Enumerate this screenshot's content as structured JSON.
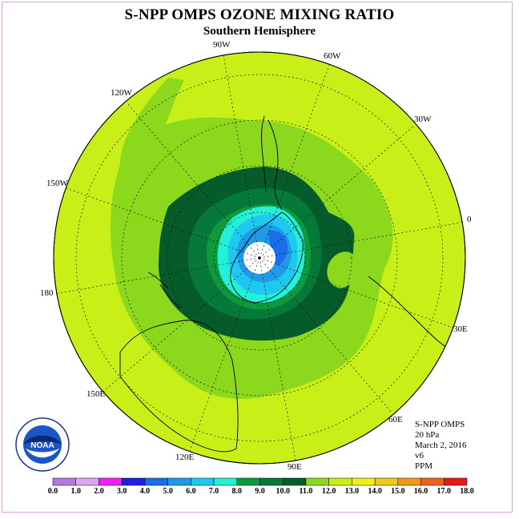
{
  "title": "S-NPP OMPS OZONE MIXING RATIO",
  "subtitle": "Southern Hemisphere",
  "longitude_labels": [
    "90W",
    "60W",
    "30W",
    "0",
    "30E",
    "60E",
    "90E",
    "120E",
    "150E",
    "180",
    "150W",
    "120W"
  ],
  "info": {
    "instrument": "S-NPP OMPS",
    "level": "20 hPa",
    "date": "March 2, 2016",
    "version": "v6",
    "units": "PPM"
  },
  "colorbar": {
    "ticks": [
      "0.0",
      "1.0",
      "2.0",
      "3.0",
      "4.0",
      "5.0",
      "6.0",
      "7.0",
      "8.0",
      "9.0",
      "10.0",
      "11.0",
      "12.0",
      "13.0",
      "14.0",
      "15.0",
      "16.0",
      "17.0",
      "18.0"
    ],
    "colors": [
      "#b07ae0",
      "#d8a8f0",
      "#f020f0",
      "#2020e0",
      "#1a6ee8",
      "#1e9ae8",
      "#1ec8f0",
      "#22f0d8",
      "#0e9a3c",
      "#067838",
      "#055c2a",
      "#8cd81c",
      "#c8f018",
      "#f0f018",
      "#f0c818",
      "#f09818",
      "#f06018",
      "#e81818",
      "#8a5a4a"
    ]
  },
  "logo": {
    "text": "NOAA"
  }
}
